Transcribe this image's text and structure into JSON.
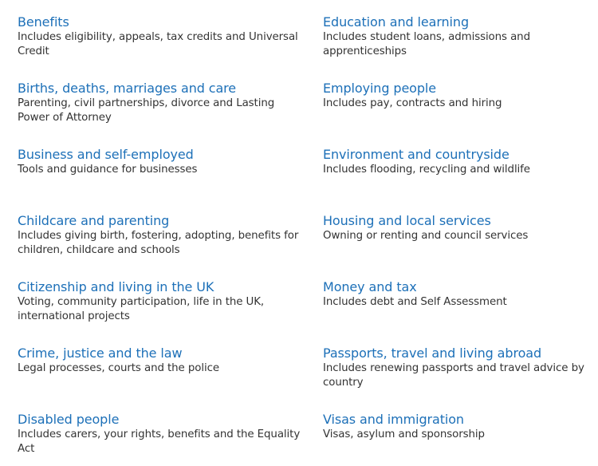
{
  "left_column": [
    {
      "title": "Benefits",
      "description": "Includes eligibility, appeals, tax credits and Universal Credit"
    },
    {
      "title": "Births, deaths, marriages and care",
      "description": "Parenting, civil partnerships, divorce and Lasting Power of Attorney"
    },
    {
      "title": "Business and self-employed",
      "description": "Tools and guidance for businesses"
    },
    {
      "title": "Childcare and parenting",
      "description": "Includes giving birth, fostering, adopting, benefits for children, childcare and schools"
    },
    {
      "title": "Citizenship and living in the UK",
      "description": "Voting, community participation, life in the UK, international projects"
    },
    {
      "title": "Crime, justice and the law",
      "description": "Legal processes, courts and the police"
    },
    {
      "title": "Disabled people",
      "description": "Includes carers, your rights, benefits and the Equality Act"
    }
  ],
  "right_column": [
    {
      "title": "Education and learning",
      "description": "Includes student loans, admissions and apprenticeships"
    },
    {
      "title": "Employing people",
      "description": "Includes pay, contracts and hiring"
    },
    {
      "title": "Environment and countryside",
      "description": "Includes flooding, recycling and wildlife"
    },
    {
      "title": "Housing and local services",
      "description": "Owning or renting and council services"
    },
    {
      "title": "Money and tax",
      "description": "Includes debt and Self Assessment"
    },
    {
      "title": "Passports, travel and living abroad",
      "description": "Includes renewing passports and travel advice by country"
    },
    {
      "title": "Visas and immigration",
      "description": "Visas, asylum and sponsorship"
    }
  ],
  "colors": {
    "link": "#1d70b8",
    "text": "#333333",
    "background": "#ffffff"
  }
}
